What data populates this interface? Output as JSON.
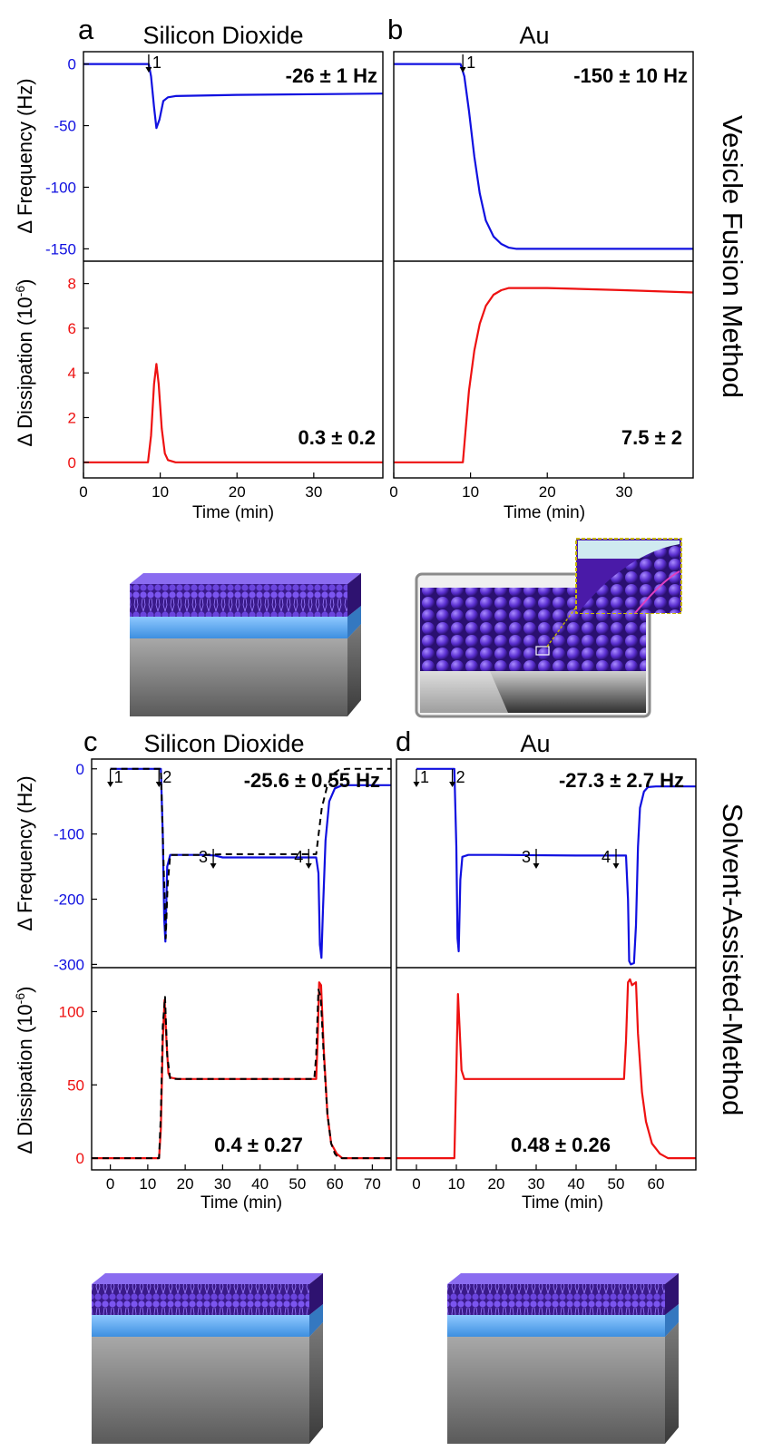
{
  "figure": {
    "row_labels": {
      "top": "Vesicle Fusion Method",
      "bottom": "Solvent-Assisted-Method"
    }
  },
  "chart_data": [
    {
      "panel": "a",
      "type": "line",
      "title": "Silicon Dioxide",
      "xlabel": "Time (min)",
      "xlim": [
        0,
        39
      ],
      "xticks": [
        0,
        10,
        20,
        30
      ],
      "frequency": {
        "ylabel": "Δ Frequency (Hz)",
        "ylim": [
          -160,
          10
        ],
        "yticks": [
          0,
          -50,
          -100,
          -150
        ],
        "color": "#1010e0",
        "annotation": "-26 ± 1 Hz",
        "series": [
          {
            "name": "measured",
            "style": "solid",
            "x": [
              0,
              8.5,
              8.8,
              9.2,
              9.5,
              9.9,
              10.4,
              11,
              12,
              20,
              39
            ],
            "y": [
              0,
              0,
              -10,
              -35,
              -52,
              -45,
              -30,
              -27,
              -26,
              -25,
              -24
            ]
          }
        ]
      },
      "dissipation": {
        "ylabel": "Δ Dissipation (10⁻⁶)",
        "ylim": [
          -0.7,
          9
        ],
        "yticks": [
          0,
          2,
          4,
          6,
          8
        ],
        "color": "#ee1111",
        "annotation": "0.3 ± 0.2",
        "series": [
          {
            "name": "measured",
            "style": "solid",
            "x": [
              0,
              8.4,
              8.8,
              9.2,
              9.5,
              9.8,
              10.2,
              10.6,
              11,
              12,
              39
            ],
            "y": [
              0,
              0,
              1.2,
              3.5,
              4.4,
              3.5,
              1.5,
              0.4,
              0.1,
              0,
              0
            ]
          }
        ]
      },
      "injections": [
        {
          "label": "1",
          "time": 8.5
        }
      ]
    },
    {
      "panel": "b",
      "type": "line",
      "title": "Au",
      "xlabel": "Time (min)",
      "xlim": [
        0,
        39
      ],
      "xticks": [
        0,
        10,
        20,
        30
      ],
      "frequency": {
        "ylabel": "",
        "ylim": [
          -160,
          10
        ],
        "yticks": [],
        "color": "#1010e0",
        "annotation": "-150 ± 10 Hz",
        "series": [
          {
            "name": "measured",
            "style": "solid",
            "x": [
              0,
              8.7,
              9.2,
              9.8,
              10.5,
              11.2,
              12,
              13,
              14,
              15,
              16,
              20,
              39
            ],
            "y": [
              0,
              0,
              -10,
              -38,
              -75,
              -105,
              -127,
              -140,
              -146,
              -149,
              -150,
              -150,
              -150
            ]
          }
        ]
      },
      "dissipation": {
        "ylabel": "",
        "ylim": [
          -0.7,
          9
        ],
        "yticks": [],
        "color": "#ee1111",
        "annotation": "7.5 ± 2",
        "series": [
          {
            "name": "measured",
            "style": "solid",
            "x": [
              0,
              9,
              9.3,
              9.8,
              10.5,
              11.2,
              12,
              13,
              14,
              15,
              17,
              20,
              30,
              39
            ],
            "y": [
              0,
              0,
              1.2,
              3.2,
              5,
              6.2,
              7,
              7.5,
              7.7,
              7.8,
              7.8,
              7.8,
              7.7,
              7.6
            ]
          }
        ]
      },
      "injections": [
        {
          "label": "1",
          "time": 9
        }
      ]
    },
    {
      "panel": "c",
      "type": "line",
      "title": "Silicon Dioxide",
      "xlabel": "Time (min)",
      "xlim": [
        -5,
        75
      ],
      "xticks": [
        0,
        10,
        20,
        30,
        40,
        50,
        60,
        70
      ],
      "frequency": {
        "ylabel": "Δ Frequency (Hz)",
        "ylim": [
          -305,
          15
        ],
        "yticks": [
          0,
          -100,
          -200,
          -300
        ],
        "color": "#1010e0",
        "annotation": "-25.6 ± 0.55  Hz",
        "series": [
          {
            "name": "measured",
            "style": "solid",
            "color": "#1010e0",
            "x": [
              0,
              13.5,
              14,
              14.4,
              14.7,
              15.2,
              16,
              25,
              28,
              30,
              40,
              50,
              55,
              55.6,
              56,
              56.4,
              56.8,
              57.5,
              58.5,
              60,
              62,
              75
            ],
            "y": [
              0,
              0,
              -100,
              -230,
              -265,
              -150,
              -132,
              -132,
              -133,
              -136,
              -136,
              -136,
              -136,
              -160,
              -270,
              -290,
              -220,
              -110,
              -50,
              -30,
              -25,
              -25
            ]
          },
          {
            "name": "model",
            "style": "dashed",
            "color": "#000000",
            "x": [
              0,
              13.5,
              14.2,
              14.8,
              15.3,
              16,
              25,
              30,
              45,
              55,
              56.5,
              58,
              59.5,
              61,
              63,
              75
            ],
            "y": [
              0,
              0,
              -140,
              -260,
              -180,
              -132,
              -132,
              -131,
              -131,
              -131,
              -60,
              -25,
              -8,
              -2,
              0,
              0
            ]
          }
        ]
      },
      "dissipation": {
        "ylabel": "Δ Dissipation (10⁻⁶)",
        "ylim": [
          -8,
          130
        ],
        "yticks": [
          0,
          50,
          100
        ],
        "color": "#ee1111",
        "annotation": "0.4 ± 0.27",
        "series": [
          {
            "name": "measured",
            "style": "solid",
            "color": "#ee1111",
            "x": [
              -5,
              13,
              13.5,
              14,
              14.5,
              15,
              15.5,
              16,
              18,
              30,
              50,
              55,
              55.4,
              55.8,
              56.3,
              57,
              58,
              59,
              60.5,
              62,
              75
            ],
            "y": [
              0,
              0,
              20,
              80,
              108,
              80,
              58,
              55,
              54,
              54,
              54,
              54,
              80,
              120,
              118,
              75,
              30,
              10,
              3,
              0,
              0
            ]
          },
          {
            "name": "model",
            "style": "dashed",
            "color": "#000000",
            "x": [
              -5,
              13,
              13.5,
              14,
              14.6,
              15.2,
              16,
              25,
              54.5,
              55,
              55.6,
              56.2,
              57,
              58,
              59,
              60,
              61,
              75
            ],
            "y": [
              0,
              0,
              30,
              90,
              110,
              70,
              54,
              54,
              54,
              70,
              115,
              110,
              70,
              30,
              10,
              3,
              0,
              0
            ]
          }
        ]
      },
      "injections": [
        {
          "label": "1",
          "time": 0
        },
        {
          "label": "2",
          "time": 13
        },
        {
          "label": "3",
          "time": 27.5
        },
        {
          "label": "4",
          "time": 53
        }
      ]
    },
    {
      "panel": "d",
      "type": "line",
      "title": "Au",
      "xlabel": "Time (min)",
      "xlim": [
        -5,
        70
      ],
      "xticks": [
        0,
        10,
        20,
        30,
        40,
        50,
        60
      ],
      "frequency": {
        "ylabel": "",
        "ylim": [
          -305,
          15
        ],
        "yticks": [],
        "color": "#1010e0",
        "annotation": "-27.3 ± 2.7 Hz",
        "series": [
          {
            "name": "measured",
            "style": "solid",
            "x": [
              0,
              9.5,
              10,
              10.3,
              10.6,
              11,
              11.5,
              13,
              20,
              40,
              52.5,
              53,
              53.3,
              53.7,
              54.5,
              55,
              55.5,
              56,
              57,
              58,
              60,
              70
            ],
            "y": [
              0,
              0,
              -120,
              -260,
              -280,
              -170,
              -135,
              -132,
              -132,
              -133,
              -133,
              -200,
              -295,
              -300,
              -298,
              -240,
              -120,
              -60,
              -35,
              -28,
              -27,
              -27
            ]
          }
        ]
      },
      "dissipation": {
        "ylabel": "",
        "ylim": [
          -8,
          130
        ],
        "yticks": [],
        "color": "#ee1111",
        "annotation": "0.48 ± 0.26",
        "series": [
          {
            "name": "measured",
            "style": "solid",
            "x": [
              -5,
              9.5,
              10,
              10.4,
              10.8,
              11.3,
              12,
              15,
              52,
              52.5,
              53,
              53.5,
              54,
              55,
              55.5,
              56.5,
              57.5,
              59,
              61,
              63,
              70
            ],
            "y": [
              0,
              0,
              60,
              112,
              90,
              60,
              54,
              54,
              54,
              80,
              120,
              122,
              118,
              120,
              85,
              45,
              25,
              10,
              3,
              0,
              0
            ]
          }
        ]
      },
      "injections": [
        {
          "label": "1",
          "time": 0
        },
        {
          "label": "2",
          "time": 9
        },
        {
          "label": "3",
          "time": 30
        },
        {
          "label": "4",
          "time": 50
        }
      ]
    }
  ]
}
